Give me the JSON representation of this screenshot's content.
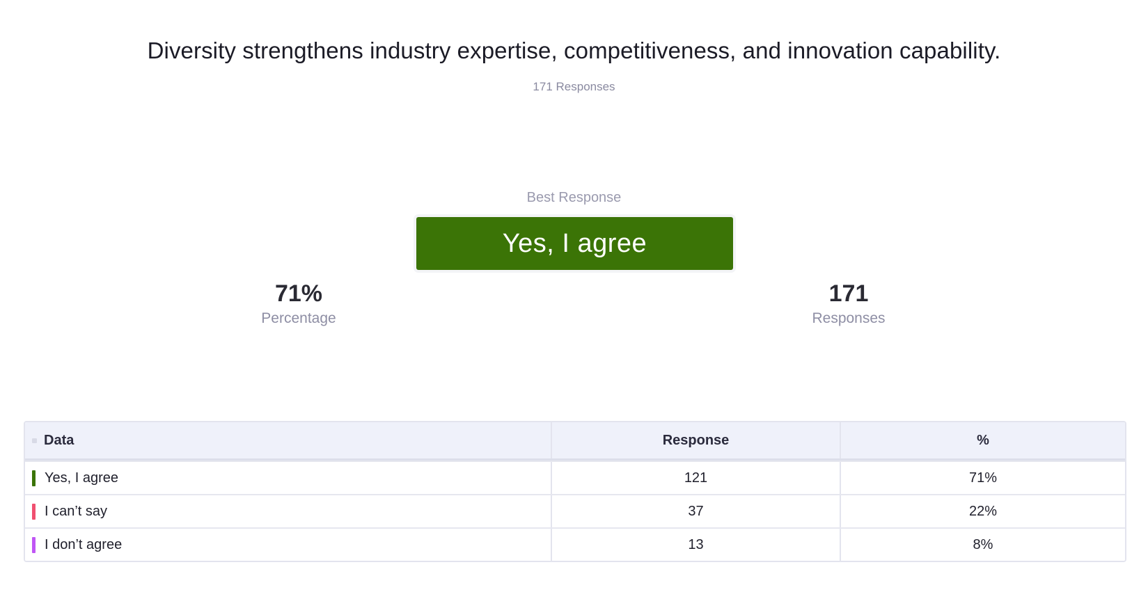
{
  "question": {
    "title": "Diversity strengthens industry expertise, competitiveness, and innovation capability.",
    "response_count_text": "171 Responses"
  },
  "best_response": {
    "label": "Best Response",
    "value": "Yes, I agree",
    "color": "#3b7406"
  },
  "stats": {
    "percentage_value": "71%",
    "percentage_label": "Percentage",
    "responses_value": "171",
    "responses_label": "Responses"
  },
  "table": {
    "headers": {
      "data": "Data",
      "response": "Response",
      "percent": "%"
    },
    "rows": [
      {
        "label": "Yes, I agree",
        "response": "121",
        "percent": "71%",
        "color": "#3b7406"
      },
      {
        "label": "I can’t say",
        "response": "37",
        "percent": "22%",
        "color": "#f05070"
      },
      {
        "label": "I don’t agree",
        "response": "13",
        "percent": "8%",
        "color": "#c056f5"
      }
    ]
  }
}
